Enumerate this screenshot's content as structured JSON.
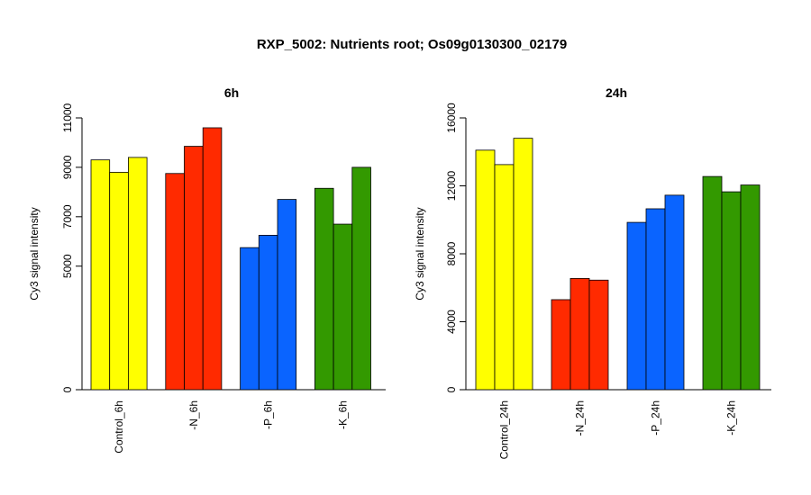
{
  "title": "RXP_5002: Nutrients root; Os09g0130300_02179",
  "chart_data": [
    {
      "type": "bar",
      "title": "6h",
      "ylabel": "Cy3 signal intensity",
      "ylim": [
        0,
        11000
      ],
      "yticks": [
        0,
        5000,
        7000,
        9000,
        11000
      ],
      "categories": [
        "Control_6h",
        "-N_6h",
        "-P_6h",
        "-K_6h"
      ],
      "group_colors": [
        "#ffff00",
        "#ff2a00",
        "#0a64ff",
        "#339900"
      ],
      "values": [
        [
          9300,
          8800,
          9400
        ],
        [
          8750,
          9850,
          10600
        ],
        [
          5750,
          6250,
          7700
        ],
        [
          8150,
          6700,
          9000
        ]
      ]
    },
    {
      "type": "bar",
      "title": "24h",
      "ylabel": "Cy3 signal intensity",
      "ylim": [
        0,
        16000
      ],
      "yticks": [
        0,
        4000,
        8000,
        12000,
        16000
      ],
      "categories": [
        "Control_24h",
        "-N_24h",
        "-P_24h",
        "-K_24h"
      ],
      "group_colors": [
        "#ffff00",
        "#ff2a00",
        "#0a64ff",
        "#339900"
      ],
      "values": [
        [
          14100,
          13250,
          14800
        ],
        [
          5300,
          6550,
          6450
        ],
        [
          9850,
          10650,
          11450
        ],
        [
          12550,
          11650,
          12050
        ]
      ]
    }
  ]
}
